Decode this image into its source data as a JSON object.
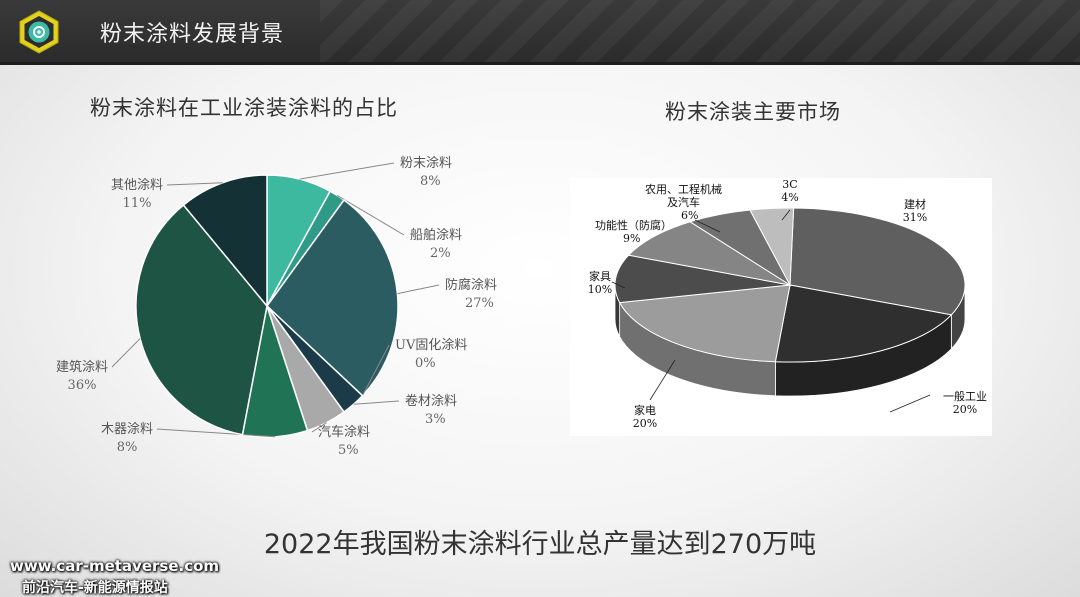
{
  "header": {
    "title": "粉末涂料发展背景"
  },
  "chart_data": [
    {
      "type": "pie",
      "title": "粉末涂料在工业涂装涂料的占比",
      "slices": [
        {
          "label": "粉末涂料",
          "value": 8,
          "pct_label": "8%"
        },
        {
          "label": "船舶涂料",
          "value": 2,
          "pct_label": "2%"
        },
        {
          "label": "防腐涂料",
          "value": 27,
          "pct_label": "27%"
        },
        {
          "label": "UV固化涂料",
          "value": 0,
          "pct_label": "0%"
        },
        {
          "label": "卷材涂料",
          "value": 3,
          "pct_label": "3%"
        },
        {
          "label": "汽车涂料",
          "value": 5,
          "pct_label": "5%"
        },
        {
          "label": "木器涂料",
          "value": 8,
          "pct_label": "8%"
        },
        {
          "label": "建筑涂料",
          "value": 36,
          "pct_label": "36%"
        },
        {
          "label": "其他涂料",
          "value": 11,
          "pct_label": "11%"
        }
      ],
      "colors": [
        "#3db9a0",
        "#2f9a88",
        "#2a5c62",
        "#2a5c62",
        "#1c3b49",
        "#a9a9a9",
        "#207355",
        "#1e5443",
        "#143136"
      ]
    },
    {
      "type": "pie",
      "title": "粉末涂装主要市场",
      "style": "3d",
      "slices": [
        {
          "label": "建材",
          "value": 31,
          "pct_label": "31%"
        },
        {
          "label": "一般工业",
          "value": 20,
          "pct_label": "20%"
        },
        {
          "label": "家电",
          "value": 20,
          "pct_label": "20%"
        },
        {
          "label": "家具",
          "value": 10,
          "pct_label": "10%"
        },
        {
          "label": "功能性（防腐）",
          "value": 9,
          "pct_label": "9%"
        },
        {
          "label": "农用、工程机械及汽车",
          "label_lines": [
            "农用、工程机械",
            "及汽车"
          ],
          "value": 6,
          "pct_label": "6%"
        },
        {
          "label": "3C",
          "value": 4,
          "pct_label": "4%"
        }
      ],
      "colors": [
        "#5f5f5f",
        "#2f2f2f",
        "#9c9c9c",
        "#4c4c4c",
        "#858585",
        "#707070",
        "#bdbdbd"
      ]
    }
  ],
  "footer": {
    "summary": "2022年我国粉末涂料行业总产量达到270万吨"
  },
  "watermark": {
    "url": "www.car-metaverse.com",
    "name": "前沿汽车-新能源情报站"
  }
}
